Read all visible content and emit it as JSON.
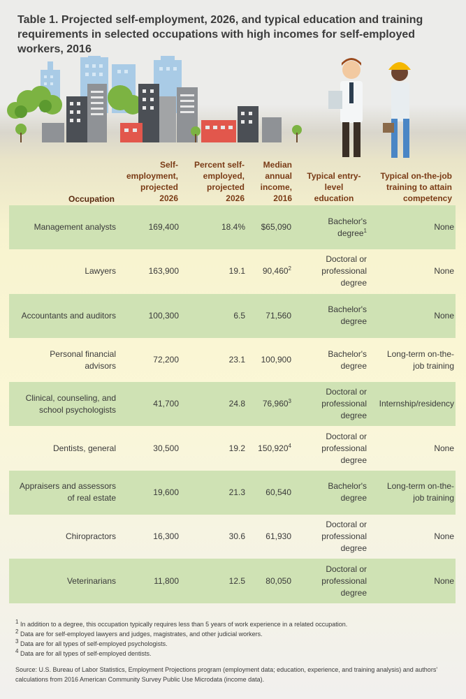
{
  "title": "Table 1. Projected self-employment, 2026, and typical education and training requirements in selected occupations with high incomes for self-employed workers, 2016",
  "headers": {
    "occupation": "Occupation",
    "self_employment": [
      "Self-",
      "employment,",
      "projected",
      "2026"
    ],
    "percent": [
      "Percent self-",
      "employed,",
      "projected",
      "2026"
    ],
    "income": [
      "Median",
      "annual",
      "income,",
      "2016"
    ],
    "education": [
      "Typical entry-",
      "level",
      "education"
    ],
    "training": [
      "Typical on-the-job",
      "training to attain",
      "competency"
    ]
  },
  "rows": [
    {
      "occupation": [
        "Management analysts"
      ],
      "self_employment": "169,400",
      "percent": "18.4%",
      "income": "$65,090",
      "income_note": "",
      "education": [
        "Bachelor's",
        "degree"
      ],
      "education_note": "1",
      "training": [
        "None"
      ]
    },
    {
      "occupation": [
        "Lawyers"
      ],
      "self_employment": "163,900",
      "percent": "19.1",
      "income": "90,460",
      "income_note": "2",
      "education": [
        "Doctoral or",
        "professional",
        "degree"
      ],
      "education_note": "",
      "training": [
        "None"
      ]
    },
    {
      "occupation": [
        "Accountants and auditors"
      ],
      "self_employment": "100,300",
      "percent": "6.5",
      "income": "71,560",
      "income_note": "",
      "education": [
        "Bachelor's",
        "degree"
      ],
      "education_note": "",
      "training": [
        "None"
      ]
    },
    {
      "occupation": [
        "Personal financial",
        "advisors"
      ],
      "self_employment": "72,200",
      "percent": "23.1",
      "income": "100,900",
      "income_note": "",
      "education": [
        "Bachelor's",
        "degree"
      ],
      "education_note": "",
      "training": [
        "Long-term on-the-",
        "job training"
      ]
    },
    {
      "occupation": [
        "Clinical, counseling, and",
        "school psychologists"
      ],
      "self_employment": "41,700",
      "percent": "24.8",
      "income": "76,960",
      "income_note": "3",
      "education": [
        "Doctoral or",
        "professional",
        "degree"
      ],
      "education_note": "",
      "training": [
        "Internship/residency"
      ]
    },
    {
      "occupation": [
        "Dentists, general"
      ],
      "self_employment": "30,500",
      "percent": "19.2",
      "income": "150,920",
      "income_note": "4",
      "education": [
        "Doctoral or",
        "professional",
        "degree"
      ],
      "education_note": "",
      "training": [
        "None"
      ]
    },
    {
      "occupation": [
        "Appraisers and assessors",
        "of real estate"
      ],
      "self_employment": "19,600",
      "percent": "21.3",
      "income": "60,540",
      "income_note": "",
      "education": [
        "Bachelor's",
        "degree"
      ],
      "education_note": "",
      "training": [
        "Long-term on-the-",
        "job training"
      ]
    },
    {
      "occupation": [
        "Chiropractors"
      ],
      "self_employment": "16,300",
      "percent": "30.6",
      "income": "61,930",
      "income_note": "",
      "education": [
        "Doctoral or",
        "professional",
        "degree"
      ],
      "education_note": "",
      "training": [
        "None"
      ]
    },
    {
      "occupation": [
        "Veterinarians"
      ],
      "self_employment": "11,800",
      "percent": "12.5",
      "income": "80,050",
      "income_note": "",
      "education": [
        "Doctoral or",
        "professional",
        "degree"
      ],
      "education_note": "",
      "training": [
        "None"
      ]
    }
  ],
  "footnotes": [
    {
      "num": "1",
      "text": "In addition to a degree, this occupation typically requires less than 5 years of work experience in a related occupation."
    },
    {
      "num": "2",
      "text": "Data are for self-employed lawyers and judges, magistrates, and other judicial workers."
    },
    {
      "num": "3",
      "text": "Data are for all types of self-employed psychologists."
    },
    {
      "num": "4",
      "text": "Data are for all types of self-employed dentists."
    }
  ],
  "source": "Source: U.S. Bureau of Labor Statistics, Employment Projections program (employment data; education, experience, and training analysis) and authors' calculations from 2016 American Community Survey Public Use Microdata (income data).",
  "colors": {
    "header_text": "#7a3b16",
    "row_green": "#cfe2b4",
    "body_text": "#3a3a3a"
  }
}
